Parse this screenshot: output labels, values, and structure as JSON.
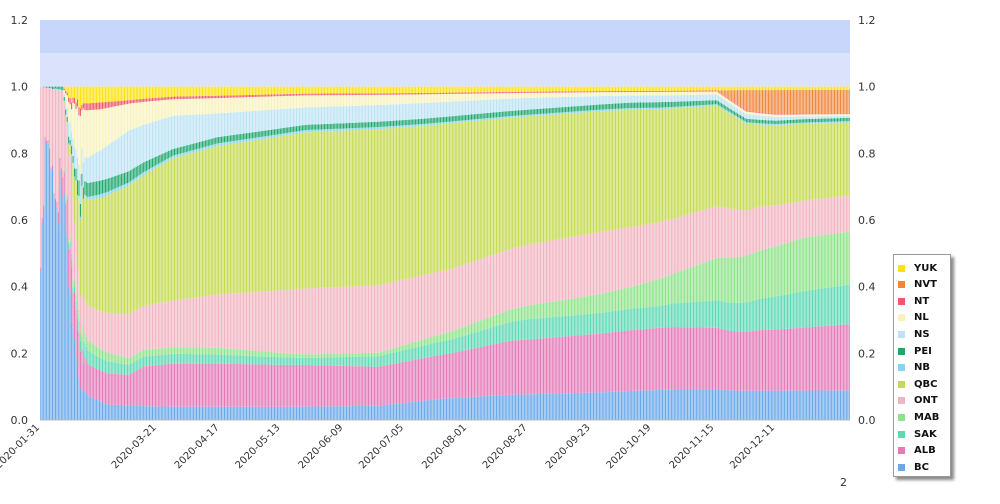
{
  "chart_data": {
    "type": "bar",
    "stacked": true,
    "x_tick_labels": [
      "2020-01-31",
      "2020-03-21",
      "2020-04-17",
      "2020-05-13",
      "2020-06-09",
      "2020-07-05",
      "2020-08-01",
      "2020-08-27",
      "2020-09-23",
      "2020-10-19",
      "2020-11-15",
      "2020-12-11"
    ],
    "y_ticks": [
      "0.0",
      "0.2",
      "0.4",
      "0.6",
      "0.8",
      "1.0",
      "1.2"
    ],
    "ylim": [
      0,
      1.2
    ],
    "right_axis_duplicate": true,
    "grid": false,
    "background_bands": [
      {
        "from": 1.1,
        "to": 1.2,
        "color": "#c9d6fb"
      },
      {
        "from": 1.0,
        "to": 1.1,
        "color": "#dae3fb"
      }
    ],
    "legend_position": "right-bottom",
    "series_order_bottom_to_top": [
      "BC",
      "ALB",
      "SAK",
      "MAB",
      "ONT",
      "QBC",
      "NB",
      "PEI",
      "NS",
      "NL",
      "NT",
      "NVT",
      "YUK"
    ],
    "series": [
      {
        "name": "BC",
        "color": "#6aa8ea",
        "knots": [
          [
            0,
            0.48
          ],
          [
            3,
            0.8
          ],
          [
            6,
            0.83
          ],
          [
            10,
            0.62
          ],
          [
            14,
            0.7
          ],
          [
            18,
            0.6
          ],
          [
            21,
            0.3
          ],
          [
            24,
            0.25
          ],
          [
            26,
            0.12
          ],
          [
            32,
            0.07
          ],
          [
            45,
            0.045
          ],
          [
            90,
            0.04
          ],
          [
            160,
            0.038
          ],
          [
            230,
            0.04
          ],
          [
            270,
            0.06
          ],
          [
            320,
            0.075
          ],
          [
            380,
            0.08
          ],
          [
            470,
            0.085
          ],
          [
            551,
            0.09
          ]
        ]
      },
      {
        "name": "ALB",
        "color": "#e47ab8",
        "knots": [
          [
            0,
            0.01
          ],
          [
            10,
            0.01
          ],
          [
            18,
            0.1
          ],
          [
            21,
            0.15
          ],
          [
            26,
            0.12
          ],
          [
            32,
            0.09
          ],
          [
            45,
            0.09
          ],
          [
            60,
            0.09
          ],
          [
            70,
            0.12
          ],
          [
            90,
            0.13
          ],
          [
            180,
            0.12
          ],
          [
            230,
            0.11
          ],
          [
            280,
            0.13
          ],
          [
            320,
            0.16
          ],
          [
            380,
            0.17
          ],
          [
            470,
            0.17
          ],
          [
            551,
            0.2
          ]
        ]
      },
      {
        "name": "SAK",
        "color": "#5ed9b4",
        "knots": [
          [
            0,
            0
          ],
          [
            15,
            0
          ],
          [
            20,
            0.02
          ],
          [
            30,
            0.04
          ],
          [
            60,
            0.03
          ],
          [
            90,
            0.03
          ],
          [
            180,
            0.02
          ],
          [
            230,
            0.03
          ],
          [
            280,
            0.04
          ],
          [
            330,
            0.06
          ],
          [
            380,
            0.06
          ],
          [
            420,
            0.06
          ],
          [
            470,
            0.08
          ],
          [
            520,
            0.11
          ],
          [
            551,
            0.12
          ]
        ]
      },
      {
        "name": "MAB",
        "color": "#8ee38a",
        "knots": [
          [
            0,
            0
          ],
          [
            15,
            0
          ],
          [
            20,
            0.02
          ],
          [
            30,
            0.03
          ],
          [
            60,
            0.02
          ],
          [
            120,
            0.02
          ],
          [
            180,
            0.01
          ],
          [
            230,
            0.01
          ],
          [
            270,
            0.02
          ],
          [
            330,
            0.04
          ],
          [
            400,
            0.06
          ],
          [
            430,
            0.08
          ],
          [
            470,
            0.13
          ],
          [
            520,
            0.16
          ],
          [
            551,
            0.16
          ]
        ]
      },
      {
        "name": "ONT",
        "color": "#f1b4c2",
        "knots": [
          [
            0,
            0.51
          ],
          [
            3,
            0.19
          ],
          [
            6,
            0.16
          ],
          [
            10,
            0.37
          ],
          [
            14,
            0.28
          ],
          [
            18,
            0.25
          ],
          [
            21,
            0.25
          ],
          [
            26,
            0.1
          ],
          [
            32,
            0.1
          ],
          [
            60,
            0.13
          ],
          [
            90,
            0.14
          ],
          [
            180,
            0.19
          ],
          [
            230,
            0.19
          ],
          [
            280,
            0.18
          ],
          [
            330,
            0.18
          ],
          [
            380,
            0.18
          ],
          [
            430,
            0.15
          ],
          [
            470,
            0.14
          ],
          [
            520,
            0.11
          ],
          [
            551,
            0.11
          ]
        ]
      },
      {
        "name": "QBC",
        "color": "#c5da50",
        "knots": [
          [
            0,
            0
          ],
          [
            15,
            0
          ],
          [
            20,
            0.03
          ],
          [
            25,
            0.2
          ],
          [
            30,
            0.3
          ],
          [
            60,
            0.38
          ],
          [
            90,
            0.43
          ],
          [
            180,
            0.45
          ],
          [
            230,
            0.44
          ],
          [
            280,
            0.42
          ],
          [
            330,
            0.38
          ],
          [
            380,
            0.35
          ],
          [
            430,
            0.3
          ],
          [
            470,
            0.27
          ],
          [
            490,
            0.24
          ],
          [
            520,
            0.23
          ],
          [
            551,
            0.22
          ]
        ]
      },
      {
        "name": "NB",
        "color": "#85d3ef",
        "knots": [
          [
            0,
            0
          ],
          [
            20,
            0.005
          ],
          [
            40,
            0.01
          ],
          [
            90,
            0.008
          ],
          [
            230,
            0.006
          ],
          [
            470,
            0.004
          ],
          [
            551,
            0.004
          ]
        ]
      },
      {
        "name": "PEI",
        "color": "#1ea86e",
        "knots": [
          [
            0,
            0
          ],
          [
            15,
            0.01
          ],
          [
            20,
            0.02
          ],
          [
            25,
            0.04
          ],
          [
            40,
            0.04
          ],
          [
            70,
            0.03
          ],
          [
            90,
            0.02
          ],
          [
            180,
            0.015
          ],
          [
            300,
            0.015
          ],
          [
            420,
            0.015
          ],
          [
            470,
            0.01
          ],
          [
            551,
            0.01
          ]
        ]
      },
      {
        "name": "NS",
        "color": "#bce3f4",
        "knots": [
          [
            0,
            0
          ],
          [
            15,
            0
          ],
          [
            20,
            0.05
          ],
          [
            30,
            0.07
          ],
          [
            60,
            0.12
          ],
          [
            90,
            0.1
          ],
          [
            120,
            0.07
          ],
          [
            180,
            0.05
          ],
          [
            260,
            0.045
          ],
          [
            330,
            0.035
          ],
          [
            400,
            0.02
          ],
          [
            470,
            0.015
          ],
          [
            520,
            0.008
          ],
          [
            551,
            0.006
          ]
        ]
      },
      {
        "name": "NL",
        "color": "#f8f2be",
        "knots": [
          [
            0,
            0
          ],
          [
            15,
            0
          ],
          [
            20,
            0.08
          ],
          [
            25,
            0.15
          ],
          [
            40,
            0.12
          ],
          [
            60,
            0.08
          ],
          [
            90,
            0.05
          ],
          [
            180,
            0.035
          ],
          [
            260,
            0.025
          ],
          [
            330,
            0.015
          ],
          [
            400,
            0.01
          ],
          [
            470,
            0.008
          ],
          [
            551,
            0.005
          ]
        ]
      },
      {
        "name": "NT",
        "color": "#f0596a",
        "knots": [
          [
            0,
            0
          ],
          [
            15,
            0
          ],
          [
            20,
            0.02
          ],
          [
            25,
            0.02
          ],
          [
            40,
            0.02
          ],
          [
            60,
            0.01
          ],
          [
            90,
            0.008
          ],
          [
            180,
            0.005
          ],
          [
            260,
            0.004
          ],
          [
            400,
            0.003
          ],
          [
            551,
            0.003
          ]
        ]
      },
      {
        "name": "NVT",
        "color": "#f0873e",
        "knots": [
          [
            0,
            0
          ],
          [
            460,
            0
          ],
          [
            470,
            0.03
          ],
          [
            480,
            0.06
          ],
          [
            500,
            0.07
          ],
          [
            551,
            0.07
          ]
        ]
      },
      {
        "name": "YUK",
        "color": "#fbe20e",
        "knots": [
          [
            0,
            0
          ],
          [
            15,
            0
          ],
          [
            20,
            0.04
          ],
          [
            25,
            0.05
          ],
          [
            60,
            0.04
          ],
          [
            90,
            0.03
          ],
          [
            180,
            0.02
          ],
          [
            260,
            0.018
          ],
          [
            400,
            0.012
          ],
          [
            470,
            0.01
          ],
          [
            551,
            0.01
          ]
        ]
      }
    ]
  },
  "legend": {
    "items": [
      {
        "label": "YUK",
        "color": "#fbe20e"
      },
      {
        "label": "NVT",
        "color": "#f0873e"
      },
      {
        "label": "NT",
        "color": "#f0596a"
      },
      {
        "label": "NL",
        "color": "#f8f2be"
      },
      {
        "label": "NS",
        "color": "#bce3f4"
      },
      {
        "label": "PEI",
        "color": "#1ea86e"
      },
      {
        "label": "NB",
        "color": "#85d3ef"
      },
      {
        "label": "QBC",
        "color": "#c5da50"
      },
      {
        "label": "ONT",
        "color": "#f1b4c2"
      },
      {
        "label": "MAB",
        "color": "#8ee38a"
      },
      {
        "label": "SAK",
        "color": "#5ed9b4"
      },
      {
        "label": "ALB",
        "color": "#e47ab8"
      },
      {
        "label": "BC",
        "color": "#6aa8ea"
      }
    ]
  },
  "page_number": "2"
}
